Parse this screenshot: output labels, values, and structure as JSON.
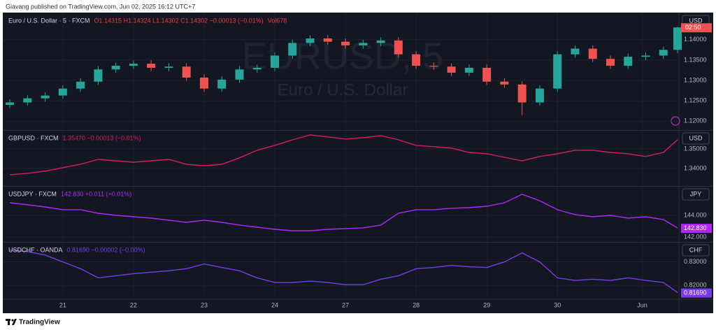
{
  "header": "Giavang published on TradingView.com, Jun 02, 2025 16:12 UTC+7",
  "footer": "TradingView",
  "chart_data": [
    {
      "type": "candlestick",
      "title": "Euro / U.S. Dollar · 5 · FXCM",
      "quote": "O1.14315 H1.14324 L1.14302 C1.14302 −0.00013 (−0.01%)",
      "volume": "Vol678",
      "watermark": "EURUSD, 5",
      "watermark_subtitle": "Euro / U.S. Dollar",
      "currency": "USD",
      "countdown": "02:50",
      "up_color": "#26a69a",
      "down_color": "#ef5350",
      "quote_color": "#f23645",
      "xlim": [
        0.19,
        9.71
      ],
      "ylim": [
        1.118,
        1.1463
      ],
      "yticks": [
        {
          "value": 1.12,
          "label": "1.12000"
        },
        {
          "value": 1.125,
          "label": "1.12500"
        },
        {
          "value": 1.13,
          "label": "1.13000"
        },
        {
          "value": 1.135,
          "label": "1.13500"
        },
        {
          "value": 1.14,
          "label": "1.14000"
        }
      ],
      "grid": true,
      "x": [
        0.25,
        0.5,
        0.75,
        1,
        1.25,
        1.5,
        1.75,
        2,
        2.25,
        2.5,
        2.75,
        3,
        3.25,
        3.5,
        3.75,
        4,
        4.25,
        4.5,
        4.75,
        5,
        5.25,
        5.5,
        5.75,
        6,
        6.25,
        6.5,
        6.75,
        7,
        7.25,
        7.5,
        7.75,
        8,
        8.25,
        8.5,
        8.75,
        9,
        9.25,
        9.5,
        9.7
      ],
      "open": [
        1.124,
        1.1246,
        1.1256,
        1.1263,
        1.128,
        1.1297,
        1.1327,
        1.1336,
        1.1341,
        1.1331,
        1.1334,
        1.1307,
        1.128,
        1.1302,
        1.1327,
        1.1331,
        1.1361,
        1.1392,
        1.1403,
        1.1395,
        1.1386,
        1.1392,
        1.1398,
        1.1364,
        1.1336,
        1.1334,
        1.1319,
        1.1331,
        1.1297,
        1.129,
        1.1246,
        1.128,
        1.1364,
        1.1378,
        1.1353,
        1.1336,
        1.1358,
        1.1361,
        1.1375
      ],
      "high": [
        1.1254,
        1.1264,
        1.1271,
        1.1288,
        1.1305,
        1.1335,
        1.1344,
        1.1349,
        1.1349,
        1.1342,
        1.1342,
        1.1315,
        1.131,
        1.1335,
        1.1339,
        1.1369,
        1.14,
        1.1411,
        1.1411,
        1.1403,
        1.14,
        1.1406,
        1.1406,
        1.1372,
        1.1344,
        1.1342,
        1.1339,
        1.1339,
        1.1305,
        1.1298,
        1.1288,
        1.1372,
        1.1386,
        1.1386,
        1.1361,
        1.1366,
        1.1369,
        1.1383,
        1.1432
      ],
      "low": [
        1.1232,
        1.1238,
        1.1248,
        1.1255,
        1.1272,
        1.1289,
        1.1319,
        1.1328,
        1.1323,
        1.1323,
        1.1299,
        1.1272,
        1.1272,
        1.1294,
        1.1319,
        1.1323,
        1.1353,
        1.1384,
        1.1387,
        1.1378,
        1.1378,
        1.1384,
        1.1356,
        1.1328,
        1.1326,
        1.1311,
        1.1311,
        1.1289,
        1.1282,
        1.1215,
        1.1238,
        1.1272,
        1.1356,
        1.1345,
        1.1328,
        1.1328,
        1.135,
        1.1353,
        1.1367
      ],
      "close": [
        1.1246,
        1.1256,
        1.1263,
        1.128,
        1.1297,
        1.1327,
        1.1336,
        1.1341,
        1.1331,
        1.1334,
        1.1307,
        1.128,
        1.1302,
        1.1327,
        1.1331,
        1.1361,
        1.1392,
        1.1403,
        1.1395,
        1.1386,
        1.1392,
        1.1398,
        1.1364,
        1.1336,
        1.1334,
        1.1319,
        1.1331,
        1.1297,
        1.129,
        1.1246,
        1.128,
        1.1364,
        1.1378,
        1.1353,
        1.1336,
        1.1358,
        1.1361,
        1.1375,
        1.143
      ]
    },
    {
      "type": "line",
      "title": "GBPUSD · FXCM",
      "quote": "1.35470 −0.00013 (−0.01%)",
      "currency": "USD",
      "color": "#d81b60",
      "xlim": [
        0.19,
        9.71
      ],
      "ylim": [
        1.3314,
        1.3589
      ],
      "yticks": [
        {
          "value": 1.34,
          "label": "1.34000"
        },
        {
          "value": 1.35,
          "label": "1.35000"
        }
      ],
      "grid": true,
      "x": [
        0.25,
        0.5,
        0.75,
        1,
        1.25,
        1.5,
        1.75,
        2,
        2.25,
        2.5,
        2.75,
        3,
        3.25,
        3.5,
        3.75,
        4,
        4.25,
        4.5,
        4.75,
        5,
        5.25,
        5.5,
        5.75,
        6,
        6.25,
        6.5,
        6.75,
        7,
        7.25,
        7.5,
        7.75,
        8,
        8.25,
        8.5,
        8.75,
        9,
        9.25,
        9.5,
        9.7
      ],
      "values": [
        1.3368,
        1.3375,
        1.3386,
        1.3404,
        1.3421,
        1.3446,
        1.3439,
        1.3432,
        1.3439,
        1.3446,
        1.3421,
        1.3414,
        1.3421,
        1.3454,
        1.3493,
        1.3518,
        1.3546,
        1.3571,
        1.3561,
        1.355,
        1.3557,
        1.3568,
        1.3546,
        1.3518,
        1.3511,
        1.3504,
        1.3482,
        1.3475,
        1.3457,
        1.3439,
        1.3461,
        1.3475,
        1.3493,
        1.3493,
        1.3482,
        1.3475,
        1.3461,
        1.3482,
        1.3547
      ]
    },
    {
      "type": "line",
      "title": "USDJPY · FXCM",
      "quote": "142.830 +0.011 (+0.01%)",
      "currency": "JPY",
      "color": "#b026ff",
      "last_label": "142.830",
      "xlim": [
        0.19,
        9.71
      ],
      "ylim": [
        141.61,
        146.58
      ],
      "yticks": [
        {
          "value": 142,
          "label": "142.000"
        },
        {
          "value": 144,
          "label": "144.000"
        }
      ],
      "grid": true,
      "x": [
        0.25,
        0.5,
        0.75,
        1,
        1.25,
        1.5,
        1.75,
        2,
        2.25,
        2.5,
        2.75,
        3,
        3.25,
        3.5,
        3.75,
        4,
        4.25,
        4.5,
        4.75,
        5,
        5.25,
        5.5,
        5.75,
        6,
        6.25,
        6.5,
        6.75,
        7,
        7.25,
        7.5,
        7.75,
        8,
        8.25,
        8.5,
        8.75,
        9,
        9.25,
        9.5,
        9.7
      ],
      "values": [
        145.16,
        144.97,
        144.77,
        144.52,
        144.52,
        144.19,
        144.0,
        143.87,
        143.74,
        143.55,
        143.35,
        143.55,
        143.35,
        143.1,
        142.9,
        142.71,
        142.58,
        142.58,
        142.71,
        142.77,
        142.84,
        143.1,
        144.19,
        144.52,
        144.52,
        144.65,
        144.71,
        144.84,
        145.16,
        145.94,
        145.35,
        144.52,
        144.06,
        143.87,
        144.0,
        143.74,
        143.87,
        143.61,
        142.83
      ]
    },
    {
      "type": "line",
      "title": "USDCHF · OANDA",
      "quote": "0.81690 −0.00002 (−0.00%)",
      "currency": "CHF",
      "color": "#7c3aed",
      "last_label": "0.81690",
      "xlim": [
        0.19,
        9.71
      ],
      "ylim": [
        0.8144,
        0.8379
      ],
      "yticks": [
        {
          "value": 0.82,
          "label": "0.82000"
        },
        {
          "value": 0.83,
          "label": "0.83000"
        }
      ],
      "xticks": [
        {
          "value": 1,
          "label": "21"
        },
        {
          "value": 2,
          "label": "22"
        },
        {
          "value": 3,
          "label": "23"
        },
        {
          "value": 4,
          "label": "24"
        },
        {
          "value": 5,
          "label": "27"
        },
        {
          "value": 6,
          "label": "28"
        },
        {
          "value": 7,
          "label": "29"
        },
        {
          "value": 8,
          "label": "30"
        },
        {
          "value": 9.2,
          "label": "Jun"
        }
      ],
      "grid": true,
      "x": [
        0.25,
        0.5,
        0.75,
        1,
        1.25,
        1.5,
        1.75,
        2,
        2.25,
        2.5,
        2.75,
        3,
        3.25,
        3.5,
        3.75,
        4,
        4.25,
        4.5,
        4.75,
        5,
        5.25,
        5.5,
        5.75,
        6,
        6.25,
        6.5,
        6.75,
        7,
        7.25,
        7.5,
        7.75,
        8,
        8.25,
        8.5,
        8.75,
        9,
        9.25,
        9.5,
        9.7
      ],
      "values": [
        0.835,
        0.8344,
        0.8329,
        0.83,
        0.8271,
        0.8232,
        0.8241,
        0.825,
        0.8256,
        0.8262,
        0.8271,
        0.8291,
        0.8276,
        0.8262,
        0.8232,
        0.8212,
        0.8212,
        0.8218,
        0.8212,
        0.8203,
        0.8203,
        0.8226,
        0.8241,
        0.8271,
        0.8276,
        0.8285,
        0.8279,
        0.8276,
        0.83,
        0.8338,
        0.83,
        0.8232,
        0.8221,
        0.8226,
        0.8221,
        0.8232,
        0.8221,
        0.8212,
        0.8169
      ]
    }
  ]
}
